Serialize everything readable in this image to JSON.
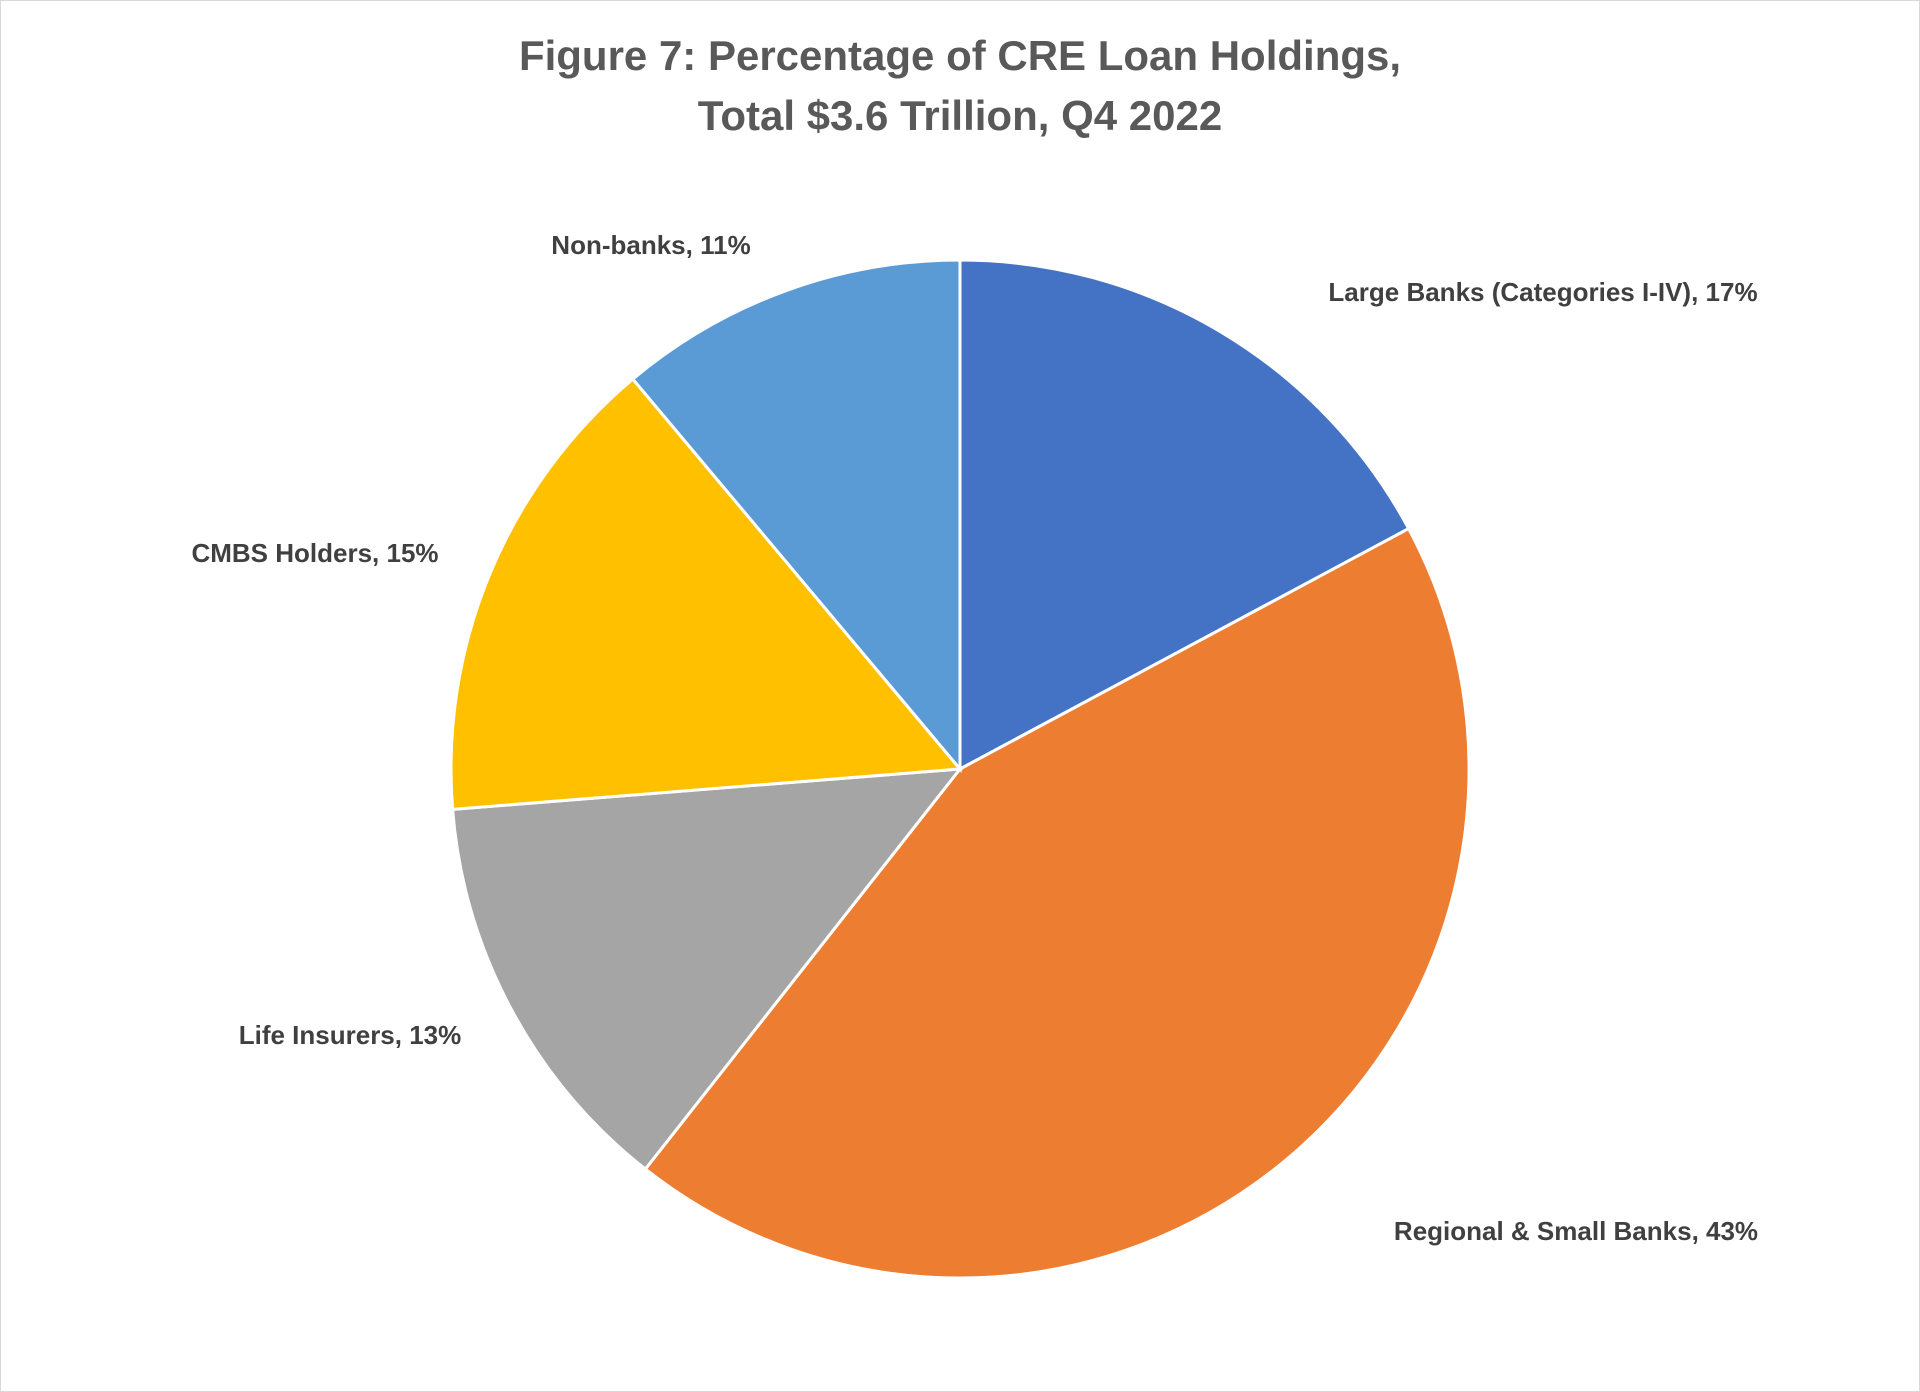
{
  "chart_data": {
    "type": "pie",
    "title": [
      "Figure 7:  Percentage of CRE Loan Holdings,",
      "Total $3.6 Trillion, Q4 2022"
    ],
    "values": [
      17,
      43,
      13,
      15,
      11
    ],
    "value_labels": [
      "Large Banks (Categories I-IV), 17%",
      "Regional & Small Banks, 43%",
      "Life Insurers, 13%",
      "CMBS Holders, 15%",
      "Non-banks, 11%"
    ],
    "colors": [
      "#4472c4",
      "#ed7d31",
      "#a5a5a5",
      "#ffc000",
      "#5b9bd5"
    ]
  }
}
